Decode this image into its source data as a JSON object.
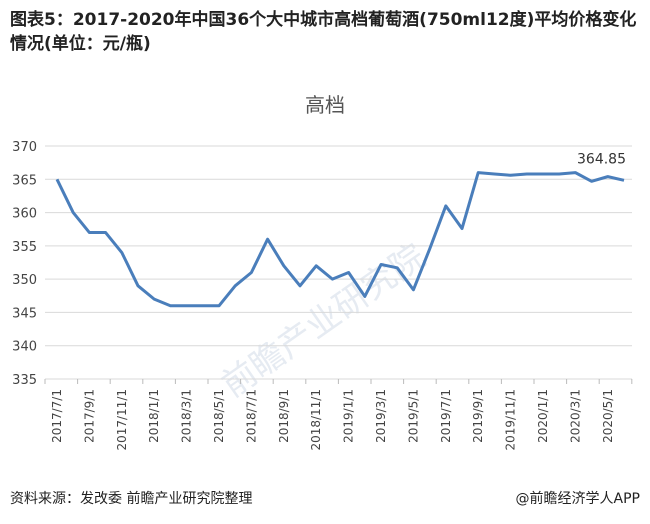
{
  "title": "图表5：2017-2020年中国36个大中城市高档葡萄酒(750ml12度)平均价格变化情况(单位：元/瓶)",
  "footer": {
    "source": "资料来源：发改委 前瞻产业研究院整理",
    "brand": "@前瞻经济学人APP"
  },
  "watermark": "前瞻产业研究院",
  "colors": {
    "line": "#4a7ebb",
    "grid": "#d9d9d9"
  },
  "chart_data": {
    "type": "line",
    "title": "高档",
    "ylim": [
      335,
      370
    ],
    "yticks": [
      335,
      340,
      345,
      350,
      355,
      360,
      365,
      370
    ],
    "xtick_labels": [
      "2017/7/1",
      "2017/9/1",
      "2017/11/1",
      "2018/1/1",
      "2018/3/1",
      "2018/5/1",
      "2018/7/1",
      "2018/9/1",
      "2018/11/1",
      "2019/1/1",
      "2019/3/1",
      "2019/5/1",
      "2019/7/1",
      "2019/9/1",
      "2019/11/1",
      "2020/1/1",
      "2020/3/1",
      "2020/5/1"
    ],
    "grid": true,
    "x": [
      "2017/7",
      "2017/8",
      "2017/9",
      "2017/10",
      "2017/11",
      "2017/12",
      "2018/1",
      "2018/2",
      "2018/3",
      "2018/4",
      "2018/5",
      "2018/6",
      "2018/7",
      "2018/8",
      "2018/9",
      "2018/10",
      "2018/11",
      "2018/12",
      "2019/1",
      "2019/2",
      "2019/3",
      "2019/4",
      "2019/5",
      "2019/6",
      "2019/7",
      "2019/8",
      "2019/9",
      "2019/10",
      "2019/11",
      "2019/12",
      "2020/1",
      "2020/2",
      "2020/3",
      "2020/4",
      "2020/5",
      "2020/6"
    ],
    "values": [
      365,
      360,
      357,
      357,
      354,
      349,
      347,
      346,
      346,
      346,
      346,
      349,
      351,
      356,
      352,
      349,
      352,
      350,
      351,
      347.4,
      352.2,
      351.7,
      348.4,
      354.5,
      361,
      357.6,
      366,
      365.8,
      365.6,
      365.8,
      365.8,
      365.8,
      366,
      364.7,
      365.4,
      364.85
    ],
    "annotation": "364.85"
  }
}
